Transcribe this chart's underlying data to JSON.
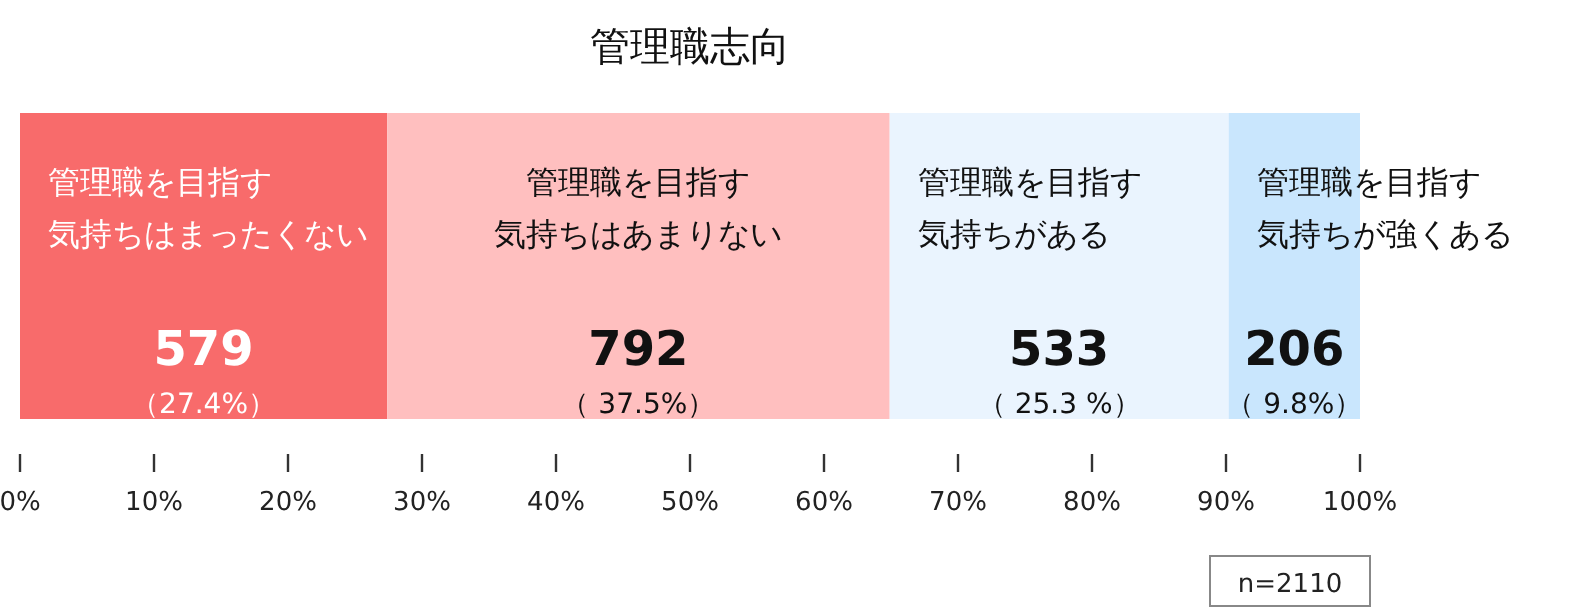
{
  "chart_data": {
    "type": "bar",
    "title": "管理職志向",
    "orientation": "horizontal",
    "stacked": true,
    "categories": [
      null
    ],
    "series": [
      {
        "name": "管理職を目指す気持ちはまったくない",
        "color": "#f86b6b",
        "values": [
          27.4
        ],
        "value_labels": [
          "（27.4%）"
        ]
      },
      {
        "name": "管理職を目指す気持ちはあまりない",
        "color": "#ffbfbf",
        "values": [
          37.5
        ],
        "value_labels": [
          "（ 37.5%）"
        ]
      },
      {
        "name": "管理職を目指す気持ちがある",
        "color": "#eaf4fe",
        "values": [
          25.3
        ],
        "value_labels": [
          "（ 25.3 %）"
        ]
      },
      {
        "name": "管理職を目指す気持ちが強くある",
        "color": "#c9e6fd",
        "values": [
          9.8
        ],
        "value_labels": [
          "（ 9.8%）"
        ]
      }
    ],
    "xlim": [
      0,
      100
    ],
    "xticks": [
      {
        "value": 0,
        "label": "0%"
      },
      {
        "value": 10,
        "label": "10%"
      },
      {
        "value": 20,
        "label": "20%"
      },
      {
        "value": 30,
        "label": "30%"
      },
      {
        "value": 40,
        "label": "40%"
      },
      {
        "value": 50,
        "label": "50%"
      },
      {
        "value": 60,
        "label": "60%"
      },
      {
        "value": 70,
        "label": "70%"
      },
      {
        "value": 80,
        "label": "80%"
      },
      {
        "value": 90,
        "label": "90%"
      },
      {
        "value": 100,
        "label": "100%"
      }
    ],
    "grid": false,
    "annotations": [
      "579",
      "792",
      "533",
      "206",
      "n=2110"
    ]
  }
}
